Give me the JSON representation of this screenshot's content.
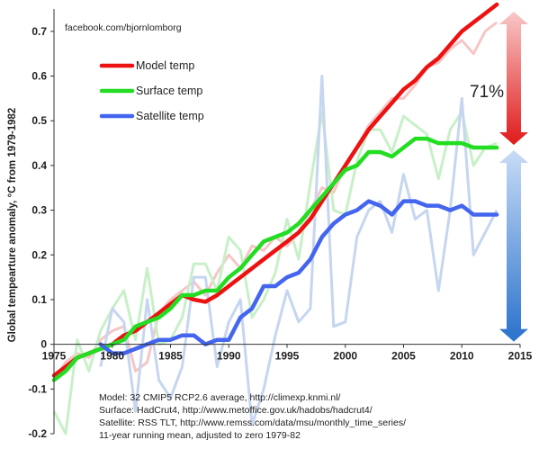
{
  "chart_data": {
    "type": "line",
    "watermark": "facebook.com/bjornlomborg",
    "ylabel": "Global tempearture anomaly, °C from 1979-1982",
    "xlabel": "",
    "title": "",
    "xlim": [
      1975,
      2015
    ],
    "ylim": [
      -0.2,
      0.75
    ],
    "x_ticks": [
      1975,
      1980,
      1985,
      1990,
      1995,
      2000,
      2005,
      2010,
      2015
    ],
    "x_tick_labels": [
      "1975",
      "1980",
      "1985",
      "1990",
      "1995",
      "2000",
      "2005",
      "2010",
      "2015"
    ],
    "y_ticks": [
      -0.2,
      -0.1,
      0,
      0.1,
      0.2,
      0.3,
      0.4,
      0.5,
      0.6,
      0.7
    ],
    "y_tick_labels": [
      "-0.2",
      "-0.1",
      "0",
      "0.1",
      "0.2",
      "0.3",
      "0.4",
      "0.5",
      "0.6",
      "0.7"
    ],
    "grid": false,
    "legend_position": "top-left",
    "series": [
      {
        "name": "Model temp",
        "color": "#ee1111",
        "raw_color": "#f6c6c6",
        "x": [
          1975,
          1976,
          1977,
          1978,
          1979,
          1980,
          1981,
          1982,
          1983,
          1984,
          1985,
          1986,
          1987,
          1988,
          1989,
          1990,
          1991,
          1992,
          1993,
          1994,
          1995,
          1996,
          1997,
          1998,
          1999,
          2000,
          2001,
          2002,
          2003,
          2004,
          2005,
          2006,
          2007,
          2008,
          2009,
          2010,
          2011,
          2012,
          2013
        ],
        "values": [
          -0.07,
          -0.05,
          -0.03,
          -0.02,
          -0.01,
          0.0,
          0.02,
          0.03,
          0.05,
          0.07,
          0.09,
          0.11,
          0.1,
          0.095,
          0.11,
          0.13,
          0.15,
          0.17,
          0.19,
          0.21,
          0.23,
          0.25,
          0.28,
          0.32,
          0.36,
          0.4,
          0.44,
          0.48,
          0.51,
          0.54,
          0.57,
          0.59,
          0.62,
          0.64,
          0.67,
          0.7,
          0.72,
          0.74,
          0.76
        ],
        "raw_x": [
          1975,
          1976,
          1977,
          1978,
          1979,
          1980,
          1981,
          1982,
          1983,
          1984,
          1985,
          1986,
          1987,
          1988,
          1989,
          1990,
          1991,
          1992,
          1993,
          1994,
          1995,
          1996,
          1997,
          1998,
          1999,
          2000,
          2001,
          2002,
          2003,
          2004,
          2005,
          2006,
          2007,
          2008,
          2009,
          2010,
          2011,
          2012,
          2013
        ],
        "raw_values": [
          -0.08,
          -0.04,
          -0.02,
          -0.03,
          0.01,
          0.03,
          0.04,
          -0.06,
          -0.04,
          0.07,
          0.1,
          0.12,
          0.14,
          0.11,
          0.16,
          0.2,
          0.17,
          0.22,
          0.21,
          0.24,
          0.22,
          0.25,
          0.3,
          0.35,
          0.34,
          0.4,
          0.44,
          0.49,
          0.52,
          0.55,
          0.55,
          0.58,
          0.62,
          0.63,
          0.66,
          0.68,
          0.65,
          0.7,
          0.72
        ]
      },
      {
        "name": "Surface temp",
        "color": "#22dd22",
        "raw_color": "#c8f0c8",
        "x": [
          1975,
          1976,
          1977,
          1978,
          1979,
          1980,
          1981,
          1982,
          1983,
          1984,
          1985,
          1986,
          1987,
          1988,
          1989,
          1990,
          1991,
          1992,
          1993,
          1994,
          1995,
          1996,
          1997,
          1998,
          1999,
          2000,
          2001,
          2002,
          2003,
          2004,
          2005,
          2006,
          2007,
          2008,
          2009,
          2010,
          2011,
          2012,
          2013
        ],
        "values": [
          -0.08,
          -0.06,
          -0.03,
          -0.02,
          -0.01,
          0.0,
          0.01,
          0.04,
          0.05,
          0.06,
          0.08,
          0.11,
          0.11,
          0.12,
          0.12,
          0.15,
          0.17,
          0.2,
          0.23,
          0.24,
          0.25,
          0.27,
          0.3,
          0.33,
          0.36,
          0.39,
          0.4,
          0.43,
          0.43,
          0.42,
          0.44,
          0.46,
          0.46,
          0.45,
          0.45,
          0.45,
          0.44,
          0.44,
          0.44
        ],
        "raw_x": [
          1975,
          1976,
          1977,
          1978,
          1979,
          1980,
          1981,
          1982,
          1983,
          1984,
          1985,
          1986,
          1987,
          1988,
          1989,
          1990,
          1991,
          1992,
          1993,
          1994,
          1995,
          1996,
          1997,
          1998,
          1999,
          2000,
          2001,
          2002,
          2003,
          2004,
          2005,
          2006,
          2007,
          2008,
          2009,
          2010,
          2011,
          2012,
          2013
        ],
        "raw_values": [
          -0.15,
          -0.2,
          0.01,
          -0.06,
          0.03,
          0.08,
          0.12,
          0.01,
          0.17,
          0.0,
          0.01,
          0.06,
          0.18,
          0.18,
          0.12,
          0.24,
          0.21,
          0.06,
          0.1,
          0.16,
          0.28,
          0.19,
          0.36,
          0.52,
          0.3,
          0.29,
          0.41,
          0.48,
          0.48,
          0.43,
          0.51,
          0.49,
          0.47,
          0.37,
          0.48,
          0.52,
          0.4,
          0.44,
          0.45
        ]
      },
      {
        "name": "Satellite temp",
        "color": "#4466ee",
        "raw_color": "#c6d6f0",
        "x": [
          1979,
          1980,
          1981,
          1982,
          1983,
          1984,
          1985,
          1986,
          1987,
          1988,
          1989,
          1990,
          1991,
          1992,
          1993,
          1994,
          1995,
          1996,
          1997,
          1998,
          1999,
          2000,
          2001,
          2002,
          2003,
          2004,
          2005,
          2006,
          2007,
          2008,
          2009,
          2010,
          2011,
          2012,
          2013
        ],
        "values": [
          0.0,
          -0.02,
          -0.02,
          -0.01,
          0.0,
          0.01,
          0.01,
          0.02,
          0.02,
          0.0,
          0.01,
          0.01,
          0.06,
          0.08,
          0.13,
          0.13,
          0.15,
          0.16,
          0.19,
          0.24,
          0.27,
          0.29,
          0.3,
          0.32,
          0.31,
          0.29,
          0.32,
          0.32,
          0.31,
          0.31,
          0.3,
          0.31,
          0.29,
          0.29,
          0.29
        ],
        "raw_x": [
          1979,
          1980,
          1981,
          1982,
          1983,
          1984,
          1985,
          1986,
          1987,
          1988,
          1989,
          1990,
          1991,
          1992,
          1993,
          1994,
          1995,
          1996,
          1997,
          1998,
          1999,
          2000,
          2001,
          2002,
          2003,
          2004,
          2005,
          2006,
          2007,
          2008,
          2009,
          2010,
          2011,
          2012,
          2013
        ],
        "raw_values": [
          -0.05,
          0.08,
          0.05,
          -0.15,
          0.1,
          -0.08,
          -0.12,
          -0.05,
          0.15,
          0.15,
          -0.05,
          0.05,
          0.1,
          -0.18,
          -0.1,
          0.02,
          0.12,
          0.05,
          0.08,
          0.6,
          0.04,
          0.05,
          0.24,
          0.3,
          0.32,
          0.25,
          0.38,
          0.28,
          0.3,
          0.12,
          0.3,
          0.55,
          0.2,
          0.25,
          0.3
        ]
      }
    ],
    "annotation_percent": "71%",
    "bracket_values": {
      "top": 0.75,
      "split": 0.44,
      "bottom": 0.0
    },
    "notes": [
      "Model: 32 CMIP5 RCP2.6 average, http://climexp.knmi.nl/",
      "Surface: HadCrut4, http://www.metoffice.gov.uk/hadobs/hadcrut4/",
      "Satellite: RSS TLT, http://www.remss.com/data/msu/monthly_time_series/",
      "11-year running mean, adjusted to zero 1979-82"
    ]
  }
}
